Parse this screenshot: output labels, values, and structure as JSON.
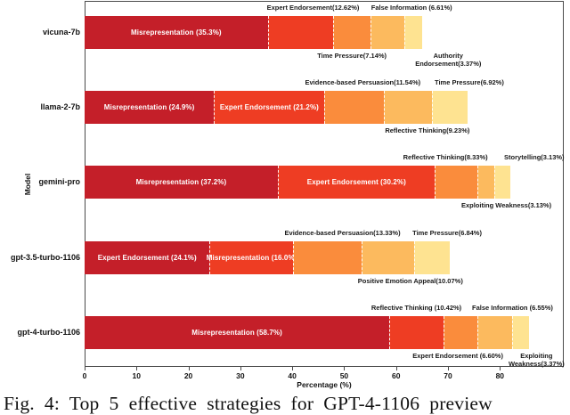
{
  "figure": {
    "caption": "Fig. 4: Top 5 effective strategies for GPT-4-1106 preview",
    "xlabel": "Percentage (%)",
    "ylabel": "Model"
  },
  "chart_data": {
    "type": "bar",
    "variant": "horizontal-stacked",
    "title": "",
    "xlabel": "Percentage (%)",
    "ylabel": "Model",
    "xlim": [
      0,
      92.3
    ],
    "xticks": [
      0,
      10,
      20,
      30,
      40,
      50,
      60,
      70,
      80
    ],
    "grid": false,
    "legend": "none (segments annotated directly)",
    "palette": [
      "#c41f29",
      "#ee3d23",
      "#fa8c3c",
      "#fcba5e",
      "#fee391"
    ],
    "inside_label_color": "#ffffff",
    "categories": [
      "vicuna-7b",
      "llama-2-7b",
      "gemini-pro",
      "gpt-3.5-turbo-1106",
      "gpt-4-turbo-1106"
    ],
    "bars": [
      {
        "model": "vicuna-7b",
        "segments": [
          {
            "name": "Misrepresentation",
            "value": 35.3,
            "label": "Misrepresentation (35.3%)",
            "side": "inside"
          },
          {
            "name": "Expert Endorsement",
            "value": 12.62,
            "label": "Expert Endorsement(12.62%)",
            "side": "above",
            "dx": 14
          },
          {
            "name": "Time Pressure",
            "value": 7.14,
            "label": "Time Pressure(7.14%)",
            "side": "below",
            "dx": 0
          },
          {
            "name": "False Information",
            "value": 6.61,
            "label": "False Information (6.61%)",
            "side": "above",
            "dx": 27
          },
          {
            "name": "Authority Endorsement",
            "value": 3.37,
            "label": "Authority Endorsement(3.37%)",
            "lines": [
              "Authority",
              "Endorsement(3.37%)"
            ],
            "side": "below",
            "dx": 39
          }
        ]
      },
      {
        "model": "llama-2-7b",
        "segments": [
          {
            "name": "Misrepresentation",
            "value": 24.9,
            "label": "Misrepresentation (24.9%)",
            "side": "inside"
          },
          {
            "name": "Expert Endorsement",
            "value": 21.2,
            "label": "Expert Endorsement (21.2%)",
            "side": "inside"
          },
          {
            "name": "Evidence-based Persuasion",
            "value": 11.54,
            "label": "Evidence-based Persuasion(11.54%)",
            "side": "above",
            "dx": 10
          },
          {
            "name": "Reflective Thinking",
            "value": 9.23,
            "label": "Reflective Thinking(9.23%)",
            "side": "below",
            "dx": 22
          },
          {
            "name": "Time Pressure",
            "value": 6.92,
            "label": "Time Pressure(6.92%)",
            "side": "above",
            "dx": 22
          }
        ]
      },
      {
        "model": "gemini-pro",
        "segments": [
          {
            "name": "Misrepresentation",
            "value": 37.2,
            "label": "Misrepresentation (37.2%)",
            "side": "inside"
          },
          {
            "name": "Expert Endorsement",
            "value": 30.2,
            "label": "Expert Endorsement (30.2%)",
            "side": "inside"
          },
          {
            "name": "Reflective Thinking",
            "value": 8.33,
            "label": "Reflective Thinking(8.33%)",
            "side": "above",
            "dx": -12
          },
          {
            "name": "Exploiting Weakness",
            "value": 3.13,
            "label": "Exploiting Weakness(3.13%)",
            "side": "below",
            "dx": 23
          },
          {
            "name": "Storytelling",
            "value": 3.13,
            "label": "Storytelling(3.13%)",
            "side": "above",
            "dx": 36
          }
        ]
      },
      {
        "model": "gpt-3.5-turbo-1106",
        "segments": [
          {
            "name": "Expert Endorsement",
            "value": 24.1,
            "label": "Expert Endorsement (24.1%)",
            "side": "inside"
          },
          {
            "name": "Misrepresentation",
            "value": 16.0,
            "label": "Misrepresentation (16.0%)",
            "side": "inside"
          },
          {
            "name": "Evidence-based Persuasion",
            "value": 13.33,
            "label": "Evidence-based Persuasion(13.33%)",
            "side": "above",
            "dx": 17
          },
          {
            "name": "Positive Emotion Appeal",
            "value": 10.07,
            "label": "Positive Emotion Appeal(10.07%)",
            "side": "below",
            "dx": 25
          },
          {
            "name": "Time Pressure",
            "value": 6.84,
            "label": "Time Pressure(6.84%)",
            "side": "above",
            "dx": 17
          }
        ]
      },
      {
        "model": "gpt-4-turbo-1106",
        "segments": [
          {
            "name": "Misrepresentation",
            "value": 58.7,
            "label": "Misrepresentation (58.7%)",
            "side": "inside"
          },
          {
            "name": "Reflective Thinking",
            "value": 10.42,
            "label": "Reflective Thinking (10.42%)",
            "side": "above",
            "dx": 0
          },
          {
            "name": "Expert Endorsement",
            "value": 6.6,
            "label": "Expert Endorsement (6.60%)",
            "side": "below",
            "dx": -3
          },
          {
            "name": "False Information",
            "value": 6.55,
            "label": "False Information (6.55%)",
            "side": "above",
            "dx": 20
          },
          {
            "name": "Exploiting Weakness",
            "value": 3.37,
            "label": "Exploiting Weakness(3.37%)",
            "lines": [
              "Exploiting",
              "Weakness(3.37%)"
            ],
            "side": "below",
            "dx": 18
          }
        ]
      }
    ]
  }
}
